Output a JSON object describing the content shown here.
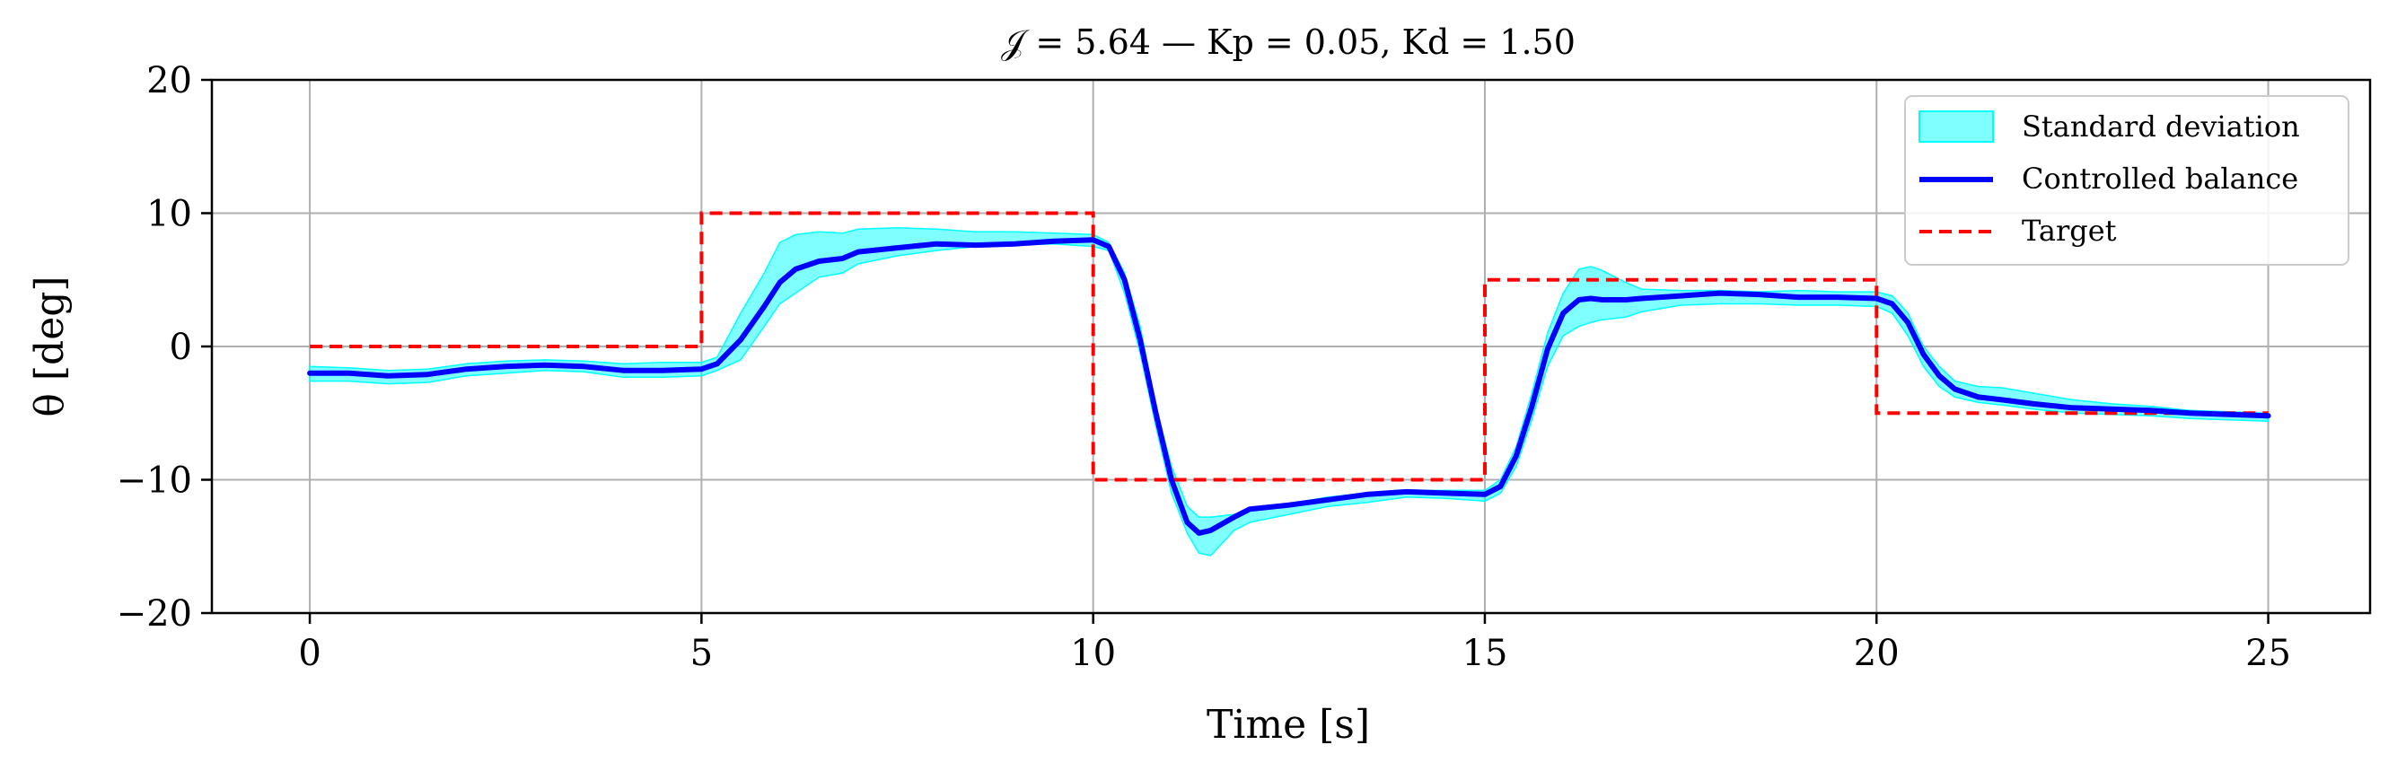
{
  "chart_data": {
    "type": "line",
    "title": "𝒥 = 5.64 — Kp = 0.05, Kd = 1.50",
    "xlabel": "Time [s]",
    "ylabel": "θ [deg]",
    "xlim": [
      -1.25,
      26.3
    ],
    "ylim": [
      -20,
      20
    ],
    "xticks": [
      0,
      5,
      10,
      15,
      20,
      25
    ],
    "yticks": [
      -20,
      -10,
      0,
      10,
      20
    ],
    "xtick_labels": [
      "0",
      "5",
      "10",
      "15",
      "20",
      "25"
    ],
    "ytick_labels": [
      "−20",
      "−10",
      "0",
      "10",
      "20"
    ],
    "grid": true,
    "legend_position": "top-right",
    "colors": {
      "band_fill": "#00ffff",
      "mean_line": "#0000ff",
      "target_line": "#ff0000"
    },
    "series": [
      {
        "name": "Standard deviation",
        "kind": "band",
        "x": [
          0,
          0.5,
          1,
          1.5,
          2,
          2.5,
          3,
          3.5,
          4,
          4.5,
          5,
          5.2,
          5.5,
          5.8,
          6,
          6.2,
          6.5,
          6.8,
          7,
          7.5,
          8,
          8.5,
          9,
          9.5,
          10,
          10.2,
          10.4,
          10.6,
          10.8,
          11,
          11.2,
          11.35,
          11.5,
          11.8,
          12,
          12.5,
          13,
          13.5,
          14,
          14.5,
          15,
          15.2,
          15.4,
          15.6,
          15.8,
          16,
          16.2,
          16.35,
          16.5,
          16.8,
          17,
          17.5,
          18,
          18.5,
          19,
          19.5,
          20,
          20.2,
          20.4,
          20.6,
          20.8,
          21,
          21.3,
          21.6,
          22,
          22.5,
          23,
          23.5,
          24,
          24.5,
          25
        ],
        "upper": [
          -1.5,
          -1.6,
          -1.8,
          -1.7,
          -1.3,
          -1.1,
          -1.0,
          -1.1,
          -1.3,
          -1.2,
          -1.2,
          -0.8,
          2.5,
          5.5,
          7.8,
          8.4,
          8.6,
          8.5,
          8.8,
          8.9,
          8.8,
          8.6,
          8.6,
          8.5,
          8.4,
          7.8,
          5.5,
          1.5,
          -4.5,
          -9.0,
          -12.0,
          -12.8,
          -12.8,
          -12.6,
          -12.3,
          -11.8,
          -11.3,
          -11.0,
          -10.8,
          -10.8,
          -10.8,
          -10.0,
          -7.5,
          -3.5,
          1.0,
          4.0,
          5.8,
          6.0,
          5.7,
          4.8,
          4.3,
          4.2,
          4.2,
          4.1,
          4.2,
          4.1,
          4.1,
          3.8,
          2.5,
          0.0,
          -1.5,
          -2.6,
          -3.0,
          -3.1,
          -3.5,
          -4.0,
          -4.3,
          -4.5,
          -4.8,
          -4.9,
          -5.0
        ],
        "lower": [
          -2.6,
          -2.6,
          -2.8,
          -2.7,
          -2.2,
          -2.0,
          -1.8,
          -1.9,
          -2.3,
          -2.3,
          -2.2,
          -1.8,
          -1.0,
          1.5,
          3.2,
          4.0,
          5.2,
          5.5,
          6.2,
          6.8,
          7.2,
          7.5,
          7.6,
          7.7,
          7.5,
          7.2,
          4.0,
          -0.5,
          -6.0,
          -11.0,
          -14.0,
          -15.5,
          -15.7,
          -13.8,
          -13.2,
          -12.6,
          -12.0,
          -11.7,
          -11.3,
          -11.4,
          -11.6,
          -11.0,
          -9.0,
          -5.5,
          -1.5,
          0.8,
          1.5,
          1.8,
          2.0,
          2.2,
          2.6,
          3.1,
          3.2,
          3.2,
          3.1,
          3.1,
          3.0,
          2.5,
          0.8,
          -1.5,
          -3.0,
          -3.8,
          -4.2,
          -4.4,
          -4.7,
          -5.0,
          -5.1,
          -5.2,
          -5.4,
          -5.5,
          -5.6
        ]
      },
      {
        "name": "Controlled balance",
        "kind": "line",
        "x": [
          0,
          0.5,
          1,
          1.5,
          2,
          2.5,
          3,
          3.5,
          4,
          4.5,
          5,
          5.2,
          5.5,
          5.8,
          6,
          6.2,
          6.5,
          6.8,
          7,
          7.5,
          8,
          8.5,
          9,
          9.5,
          10,
          10.2,
          10.4,
          10.6,
          10.8,
          11,
          11.2,
          11.35,
          11.5,
          11.8,
          12,
          12.5,
          13,
          13.5,
          14,
          14.5,
          15,
          15.2,
          15.4,
          15.6,
          15.8,
          16,
          16.2,
          16.35,
          16.5,
          16.8,
          17,
          17.5,
          18,
          18.5,
          19,
          19.5,
          20,
          20.2,
          20.4,
          20.6,
          20.8,
          21,
          21.3,
          21.6,
          22,
          22.5,
          23,
          23.5,
          24,
          24.5,
          25
        ],
        "y": [
          -2.0,
          -2.0,
          -2.2,
          -2.1,
          -1.7,
          -1.5,
          -1.4,
          -1.5,
          -1.8,
          -1.8,
          -1.7,
          -1.3,
          0.5,
          3.0,
          4.8,
          5.8,
          6.4,
          6.6,
          7.1,
          7.4,
          7.7,
          7.6,
          7.7,
          7.9,
          8.0,
          7.5,
          5.0,
          0.5,
          -5.0,
          -10.0,
          -13.2,
          -14.0,
          -13.8,
          -12.8,
          -12.2,
          -11.9,
          -11.5,
          -11.1,
          -10.9,
          -11.0,
          -11.1,
          -10.5,
          -8.2,
          -4.5,
          -0.2,
          2.5,
          3.5,
          3.6,
          3.5,
          3.5,
          3.6,
          3.8,
          4.0,
          3.9,
          3.7,
          3.7,
          3.6,
          3.2,
          1.8,
          -0.6,
          -2.2,
          -3.2,
          -3.8,
          -4.0,
          -4.3,
          -4.6,
          -4.7,
          -4.8,
          -5.0,
          -5.1,
          -5.2
        ]
      },
      {
        "name": "Target",
        "kind": "step-line",
        "x": [
          0,
          5,
          5,
          10,
          10,
          15,
          15,
          20,
          20,
          25
        ],
        "y": [
          0,
          0,
          10,
          10,
          -10,
          -10,
          5,
          5,
          -5,
          -5
        ]
      }
    ]
  }
}
